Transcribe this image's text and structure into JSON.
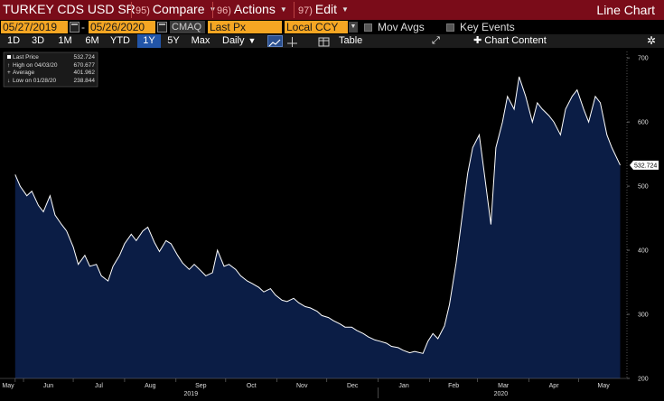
{
  "titlebar": {
    "ticker": "TURKEY CDS USD SR",
    "compare_num": "95)",
    "compare_label": "Compare",
    "actions_num": "96)",
    "actions_label": "Actions",
    "edit_num": "97)",
    "edit_label": "Edit",
    "view_name": "Line Chart"
  },
  "controls": {
    "start_date": "05/27/2019",
    "date_sep": "-",
    "end_date": "05/26/2020",
    "source": "CMAQ",
    "field": "Last Px",
    "currency": "Local CCY",
    "mov_avgs": "Mov Avgs",
    "key_events": "Key Events"
  },
  "periods": [
    "1D",
    "3D",
    "1M",
    "6M",
    "YTD",
    "1Y",
    "5Y",
    "Max"
  ],
  "active_period": "1Y",
  "frequency": "Daily",
  "table_label": "Table",
  "chart_content_label": "Chart Content",
  "colors": {
    "title_bar": "#7a0c19",
    "input_orange": "#f5a623",
    "active_period": "#2255a8",
    "series_line": "#ffffff",
    "series_fill": "#0b1d45"
  },
  "chart_data": {
    "type": "area",
    "series": [
      {
        "name": "Last Price",
        "x": [
          "2019-05-27",
          "2019-05-30",
          "2019-06-03",
          "2019-06-06",
          "2019-06-10",
          "2019-06-13",
          "2019-06-17",
          "2019-06-20",
          "2019-06-24",
          "2019-06-27",
          "2019-07-01",
          "2019-07-04",
          "2019-07-08",
          "2019-07-11",
          "2019-07-15",
          "2019-07-18",
          "2019-07-22",
          "2019-07-25",
          "2019-07-29",
          "2019-08-01",
          "2019-08-05",
          "2019-08-08",
          "2019-08-12",
          "2019-08-15",
          "2019-08-19",
          "2019-08-22",
          "2019-08-26",
          "2019-08-29",
          "2019-09-02",
          "2019-09-05",
          "2019-09-09",
          "2019-09-12",
          "2019-09-16",
          "2019-09-19",
          "2019-09-23",
          "2019-09-26",
          "2019-09-30",
          "2019-10-03",
          "2019-10-07",
          "2019-10-10",
          "2019-10-14",
          "2019-10-17",
          "2019-10-21",
          "2019-10-24",
          "2019-10-28",
          "2019-10-31",
          "2019-11-04",
          "2019-11-07",
          "2019-11-11",
          "2019-11-14",
          "2019-11-18",
          "2019-11-21",
          "2019-11-25",
          "2019-11-28",
          "2019-12-02",
          "2019-12-05",
          "2019-12-09",
          "2019-12-12",
          "2019-12-16",
          "2019-12-19",
          "2019-12-23",
          "2019-12-26",
          "2019-12-30",
          "2020-01-02",
          "2020-01-06",
          "2020-01-09",
          "2020-01-13",
          "2020-01-16",
          "2020-01-20",
          "2020-01-23",
          "2020-01-28",
          "2020-01-31",
          "2020-02-03",
          "2020-02-06",
          "2020-02-10",
          "2020-02-13",
          "2020-02-17",
          "2020-02-20",
          "2020-02-24",
          "2020-02-27",
          "2020-03-02",
          "2020-03-05",
          "2020-03-09",
          "2020-03-12",
          "2020-03-16",
          "2020-03-19",
          "2020-03-23",
          "2020-03-26",
          "2020-03-30",
          "2020-04-03",
          "2020-04-06",
          "2020-04-09",
          "2020-04-13",
          "2020-04-16",
          "2020-04-20",
          "2020-04-23",
          "2020-04-27",
          "2020-04-30",
          "2020-05-04",
          "2020-05-07",
          "2020-05-11",
          "2020-05-14",
          "2020-05-18",
          "2020-05-21",
          "2020-05-26"
        ],
        "values": [
          518,
          500,
          485,
          492,
          470,
          460,
          485,
          455,
          440,
          430,
          405,
          378,
          392,
          375,
          378,
          360,
          352,
          375,
          392,
          410,
          425,
          415,
          430,
          436,
          412,
          398,
          415,
          410,
          392,
          380,
          370,
          378,
          368,
          360,
          365,
          400,
          375,
          378,
          370,
          360,
          352,
          348,
          342,
          335,
          340,
          330,
          322,
          320,
          325,
          318,
          312,
          310,
          305,
          298,
          295,
          290,
          285,
          280,
          280,
          275,
          270,
          265,
          260,
          258,
          255,
          250,
          248,
          244,
          240,
          242,
          239,
          258,
          270,
          262,
          282,
          315,
          380,
          440,
          520,
          560,
          580,
          520,
          440,
          560,
          600,
          640,
          620,
          670.677,
          640,
          600,
          630,
          620,
          610,
          600,
          580,
          620,
          640,
          650,
          620,
          600,
          640,
          630,
          580,
          560,
          532.724
        ]
      }
    ],
    "x_ticks": [
      "May",
      "Jun",
      "Jul",
      "Aug",
      "Sep",
      "Oct",
      "Nov",
      "Dec",
      "Jan",
      "Feb",
      "Mar",
      "Apr",
      "May"
    ],
    "year_labels": [
      "2019",
      "2020"
    ],
    "y_ticks": [
      200,
      300,
      400,
      500,
      600,
      700
    ],
    "ylim": [
      200,
      710
    ],
    "last_price_label": "532.724",
    "legend": {
      "placement": "top-left",
      "rows": [
        {
          "label": "Last Price",
          "value": "532.724"
        },
        {
          "label": "High on 04/03/20",
          "value": "670.677"
        },
        {
          "label": "Average",
          "value": "401.962"
        },
        {
          "label": "Low on 01/28/20",
          "value": "238.844"
        }
      ]
    },
    "grid": false
  }
}
